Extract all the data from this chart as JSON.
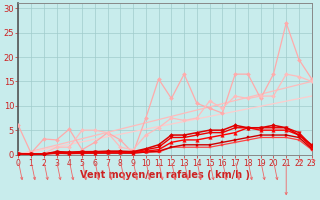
{
  "bg_color": "#c8ecec",
  "grid_color": "#a0cccc",
  "x_label": "Vent moyen/en rafales ( km/h )",
  "x_ticks": [
    0,
    1,
    2,
    3,
    4,
    5,
    6,
    7,
    8,
    9,
    10,
    11,
    12,
    13,
    14,
    15,
    16,
    17,
    18,
    19,
    20,
    21,
    22,
    23
  ],
  "ylim": [
    0,
    31
  ],
  "xlim": [
    0,
    23
  ],
  "yticks": [
    0,
    5,
    10,
    15,
    20,
    25,
    30
  ],
  "line_straight1": {
    "x": [
      0,
      1,
      2,
      3,
      4,
      5,
      6,
      7,
      8,
      9,
      10,
      11,
      12,
      13,
      14,
      15,
      16,
      17,
      18,
      19,
      20,
      21,
      22,
      23
    ],
    "y": [
      0.0,
      0.65,
      1.3,
      1.95,
      2.6,
      3.26,
      3.91,
      4.56,
      5.22,
      5.87,
      6.52,
      7.17,
      7.83,
      8.48,
      9.13,
      9.78,
      10.43,
      11.09,
      11.74,
      12.39,
      13.04,
      13.7,
      14.35,
      15.0
    ],
    "color": "#ffbbbb",
    "lw": 0.9,
    "marker": null,
    "ms": 0
  },
  "line_straight2": {
    "x": [
      0,
      1,
      2,
      3,
      4,
      5,
      6,
      7,
      8,
      9,
      10,
      11,
      12,
      13,
      14,
      15,
      16,
      17,
      18,
      19,
      20,
      21,
      22,
      23
    ],
    "y": [
      0.0,
      0.52,
      1.04,
      1.57,
      2.09,
      2.61,
      3.13,
      3.65,
      4.17,
      4.7,
      5.22,
      5.74,
      6.26,
      6.78,
      7.3,
      7.83,
      8.35,
      8.87,
      9.39,
      9.91,
      10.43,
      10.96,
      11.48,
      12.0
    ],
    "color": "#ffcccc",
    "lw": 0.9,
    "marker": null,
    "ms": 0
  },
  "line_jagged_light1": {
    "x": [
      0,
      1,
      2,
      3,
      4,
      5,
      6,
      7,
      8,
      9,
      10,
      11,
      12,
      13,
      14,
      15,
      16,
      17,
      18,
      19,
      20,
      21,
      22,
      23
    ],
    "y": [
      6.0,
      0.3,
      3.2,
      3.0,
      5.2,
      1.0,
      2.5,
      4.5,
      3.0,
      0.3,
      7.5,
      15.5,
      11.5,
      16.5,
      10.5,
      9.5,
      8.5,
      16.5,
      16.5,
      11.5,
      16.5,
      27.0,
      19.5,
      15.5
    ],
    "color": "#ffaaaa",
    "lw": 0.9,
    "marker": "D",
    "ms": 2.0
  },
  "line_jagged_light2": {
    "x": [
      0,
      1,
      2,
      3,
      4,
      5,
      6,
      7,
      8,
      9,
      10,
      11,
      12,
      13,
      14,
      15,
      16,
      17,
      18,
      19,
      20,
      21,
      22,
      23
    ],
    "y": [
      0.3,
      0.2,
      0.2,
      1.5,
      1.5,
      5.0,
      5.0,
      4.5,
      1.5,
      1.0,
      4.0,
      5.5,
      7.5,
      7.0,
      7.5,
      11.0,
      9.5,
      12.0,
      11.5,
      12.0,
      12.0,
      16.5,
      16.0,
      15.0
    ],
    "color": "#ffbbbb",
    "lw": 0.9,
    "marker": "D",
    "ms": 2.0
  },
  "line_dark1": {
    "x": [
      0,
      1,
      2,
      3,
      4,
      5,
      6,
      7,
      8,
      9,
      10,
      11,
      12,
      13,
      14,
      15,
      16,
      17,
      18,
      19,
      20,
      21,
      22,
      23
    ],
    "y": [
      0.2,
      0.1,
      0.1,
      0.3,
      0.2,
      0.3,
      0.3,
      0.3,
      0.3,
      0.3,
      0.5,
      0.7,
      1.5,
      2.0,
      2.0,
      2.0,
      2.5,
      3.0,
      3.5,
      4.0,
      4.0,
      4.0,
      3.5,
      1.2
    ],
    "color": "#cc0000",
    "lw": 1.0,
    "marker": "s",
    "ms": 2.0
  },
  "line_dark2": {
    "x": [
      0,
      1,
      2,
      3,
      4,
      5,
      6,
      7,
      8,
      9,
      10,
      11,
      12,
      13,
      14,
      15,
      16,
      17,
      18,
      19,
      20,
      21,
      22,
      23
    ],
    "y": [
      0.2,
      0.1,
      0.1,
      0.4,
      0.3,
      0.4,
      0.4,
      0.5,
      0.5,
      0.4,
      0.7,
      1.0,
      2.5,
      3.0,
      3.0,
      3.5,
      4.0,
      4.5,
      5.5,
      5.0,
      5.0,
      5.0,
      4.0,
      1.5
    ],
    "color": "#ff0000",
    "lw": 1.0,
    "marker": "^",
    "ms": 2.5
  },
  "line_dark3": {
    "x": [
      0,
      1,
      2,
      3,
      4,
      5,
      6,
      7,
      8,
      9,
      10,
      11,
      12,
      13,
      14,
      15,
      16,
      17,
      18,
      19,
      20,
      21,
      22,
      23
    ],
    "y": [
      0.2,
      0.1,
      0.1,
      0.5,
      0.4,
      0.5,
      0.5,
      0.6,
      0.6,
      0.5,
      1.0,
      1.5,
      3.5,
      3.5,
      4.0,
      4.5,
      4.5,
      5.5,
      5.5,
      5.5,
      5.5,
      5.5,
      4.5,
      1.8
    ],
    "color": "#ee0000",
    "lw": 1.0,
    "marker": "v",
    "ms": 2.5
  },
  "line_dark4": {
    "x": [
      0,
      1,
      2,
      3,
      4,
      5,
      6,
      7,
      8,
      9,
      10,
      11,
      12,
      13,
      14,
      15,
      16,
      17,
      18,
      19,
      20,
      21,
      22,
      23
    ],
    "y": [
      0.2,
      0.1,
      0.1,
      0.6,
      0.5,
      0.6,
      0.6,
      0.7,
      0.7,
      0.6,
      1.2,
      2.0,
      4.0,
      4.0,
      4.5,
      5.0,
      5.0,
      6.0,
      5.5,
      5.5,
      6.0,
      5.5,
      4.0,
      2.0
    ],
    "color": "#dd0000",
    "lw": 1.1,
    "marker": "D",
    "ms": 2.0
  },
  "line_dark5": {
    "x": [
      0,
      1,
      2,
      3,
      4,
      5,
      6,
      7,
      8,
      9,
      10,
      11,
      12,
      13,
      14,
      15,
      16,
      17,
      18,
      19,
      20,
      21,
      22,
      23
    ],
    "y": [
      0.0,
      0.1,
      0.1,
      0.2,
      0.2,
      0.2,
      0.3,
      0.3,
      0.3,
      0.3,
      0.5,
      0.5,
      1.5,
      1.5,
      1.5,
      1.5,
      2.0,
      2.5,
      3.0,
      3.5,
      3.5,
      3.5,
      3.0,
      1.0
    ],
    "color": "#ff4444",
    "lw": 0.9,
    "marker": "s",
    "ms": 1.5
  },
  "arrow_color": "#ee6666",
  "axes_color": "#888888",
  "tick_color": "#cc2222",
  "label_color": "#cc2222",
  "label_fontsize": 7.0,
  "tick_fontsize_x": 5.5,
  "tick_fontsize_y": 6.0
}
